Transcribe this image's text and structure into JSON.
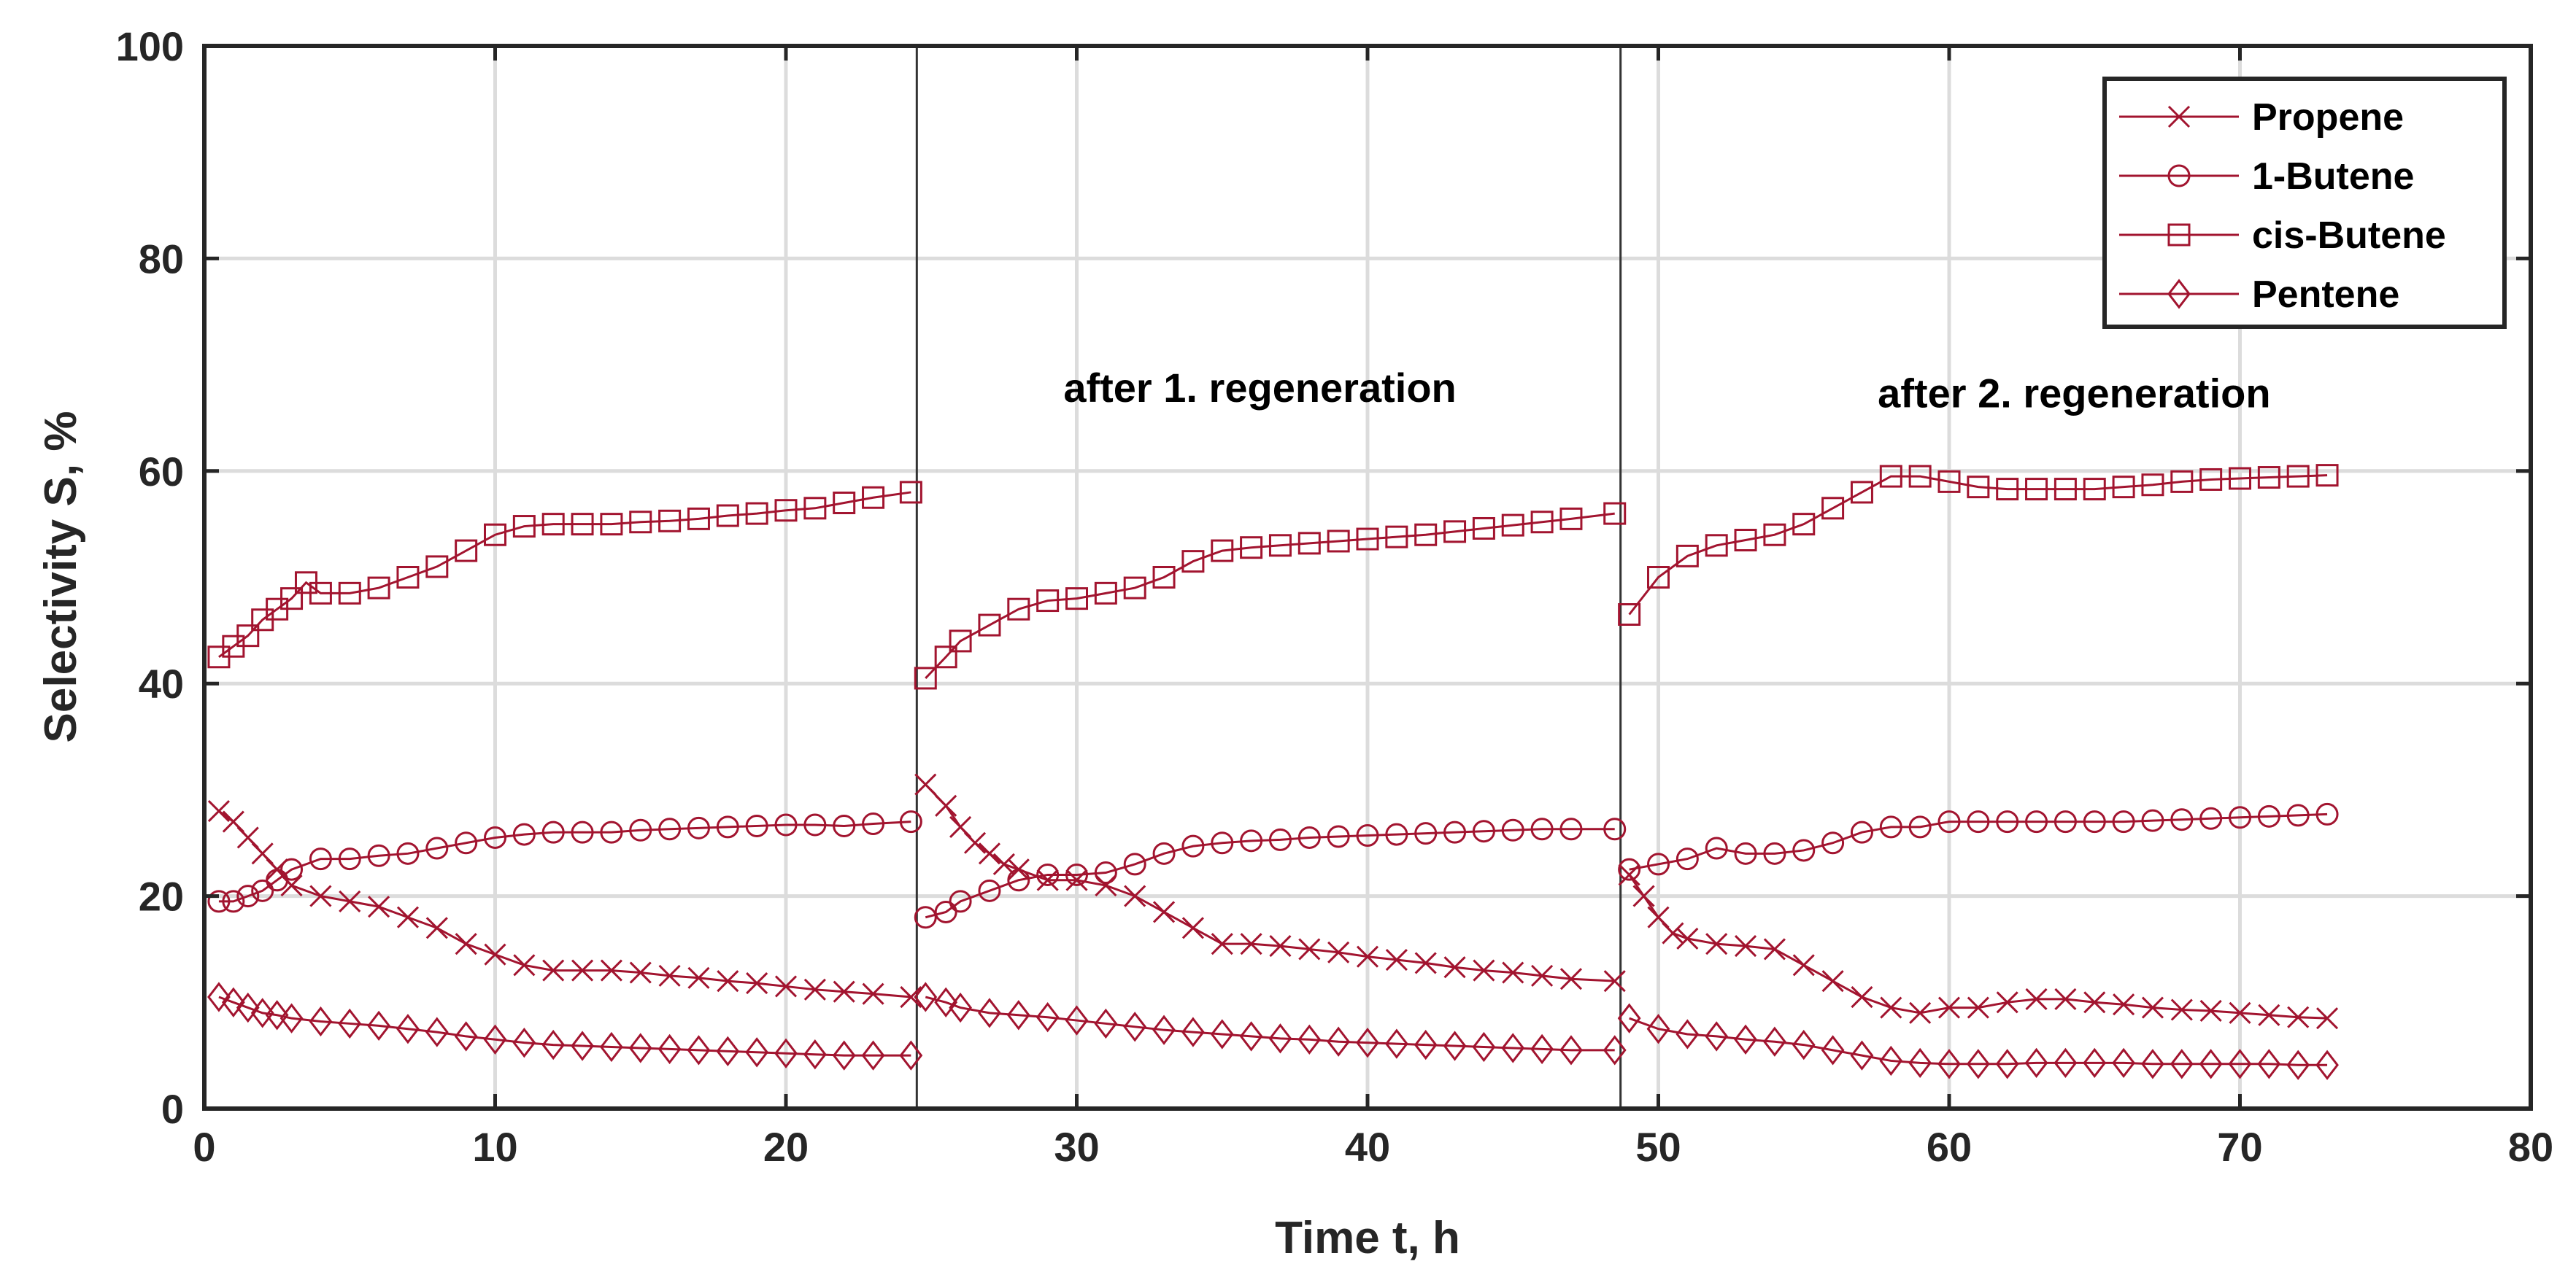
{
  "chart_data": {
    "type": "line",
    "title": "",
    "xlabel": "Time t, h",
    "ylabel": "Selectivity S, %",
    "xlim": [
      0,
      80
    ],
    "ylim": [
      0,
      100
    ],
    "xticks": [
      0,
      10,
      20,
      30,
      40,
      50,
      60,
      70,
      80
    ],
    "yticks": [
      0,
      20,
      40,
      60,
      80,
      100
    ],
    "grid": true,
    "legend_position": "top-right",
    "series_color": "#a2142f",
    "vlines": [
      24.5,
      48.7
    ],
    "annotations": [
      {
        "text": "after 1. regeneration",
        "x": 36.3,
        "y": 66.5
      },
      {
        "text": "after 2. regeneration",
        "x": 64.3,
        "y": 66
      }
    ],
    "series": [
      {
        "name": "Propene",
        "marker": "x",
        "points": [
          [
            0.5,
            28
          ],
          [
            1,
            27
          ],
          [
            1.5,
            25.5
          ],
          [
            2,
            24
          ],
          [
            2.5,
            22.5
          ],
          [
            3,
            21
          ],
          [
            4,
            20
          ],
          [
            5,
            19.5
          ],
          [
            6,
            19
          ],
          [
            7,
            18
          ],
          [
            8,
            17
          ],
          [
            9,
            15.5
          ],
          [
            10,
            14.5
          ],
          [
            11,
            13.5
          ],
          [
            12,
            13
          ],
          [
            13,
            13
          ],
          [
            14,
            13
          ],
          [
            15,
            12.8
          ],
          [
            16,
            12.5
          ],
          [
            17,
            12.3
          ],
          [
            18,
            12
          ],
          [
            19,
            11.8
          ],
          [
            20,
            11.5
          ],
          [
            21,
            11.2
          ],
          [
            22,
            11
          ],
          [
            23,
            10.8
          ],
          [
            24.3,
            10.5
          ],
          [
            24.8,
            30.5
          ],
          [
            25.5,
            28.5
          ],
          [
            26,
            26.5
          ],
          [
            26.5,
            25
          ],
          [
            27,
            24
          ],
          [
            27.5,
            23
          ],
          [
            28,
            22.5
          ],
          [
            29,
            21.5
          ],
          [
            30,
            21.5
          ],
          [
            31,
            21
          ],
          [
            32,
            20
          ],
          [
            33,
            18.5
          ],
          [
            34,
            17
          ],
          [
            35,
            15.5
          ],
          [
            36,
            15.5
          ],
          [
            37,
            15.3
          ],
          [
            38,
            15
          ],
          [
            39,
            14.7
          ],
          [
            40,
            14.3
          ],
          [
            41,
            14
          ],
          [
            42,
            13.7
          ],
          [
            43,
            13.3
          ],
          [
            44,
            13
          ],
          [
            45,
            12.8
          ],
          [
            46,
            12.5
          ],
          [
            47,
            12.2
          ],
          [
            48.5,
            12
          ],
          [
            49,
            22
          ],
          [
            49.5,
            20
          ],
          [
            50,
            18
          ],
          [
            50.5,
            16.5
          ],
          [
            51,
            16
          ],
          [
            52,
            15.5
          ],
          [
            53,
            15.3
          ],
          [
            54,
            15
          ],
          [
            55,
            13.5
          ],
          [
            56,
            12
          ],
          [
            57,
            10.5
          ],
          [
            58,
            9.5
          ],
          [
            59,
            9
          ],
          [
            60,
            9.5
          ],
          [
            61,
            9.5
          ],
          [
            62,
            10
          ],
          [
            63,
            10.3
          ],
          [
            64,
            10.3
          ],
          [
            65,
            10
          ],
          [
            66,
            9.8
          ],
          [
            67,
            9.5
          ],
          [
            68,
            9.3
          ],
          [
            69,
            9.2
          ],
          [
            70,
            9
          ],
          [
            71,
            8.8
          ],
          [
            72,
            8.6
          ],
          [
            73,
            8.5
          ]
        ]
      },
      {
        "name": "1-Butene",
        "marker": "o",
        "points": [
          [
            0.5,
            19.5
          ],
          [
            1,
            19.5
          ],
          [
            1.5,
            20
          ],
          [
            2,
            20.5
          ],
          [
            2.5,
            21.5
          ],
          [
            3,
            22.5
          ],
          [
            4,
            23.5
          ],
          [
            5,
            23.5
          ],
          [
            6,
            23.8
          ],
          [
            7,
            24
          ],
          [
            8,
            24.5
          ],
          [
            9,
            25
          ],
          [
            10,
            25.5
          ],
          [
            11,
            25.8
          ],
          [
            12,
            26
          ],
          [
            13,
            26
          ],
          [
            14,
            26
          ],
          [
            15,
            26.2
          ],
          [
            16,
            26.3
          ],
          [
            17,
            26.4
          ],
          [
            18,
            26.5
          ],
          [
            19,
            26.6
          ],
          [
            20,
            26.7
          ],
          [
            21,
            26.7
          ],
          [
            22,
            26.6
          ],
          [
            23,
            26.8
          ],
          [
            24.3,
            27
          ],
          [
            24.8,
            18
          ],
          [
            25.5,
            18.5
          ],
          [
            26,
            19.5
          ],
          [
            27,
            20.5
          ],
          [
            28,
            21.5
          ],
          [
            29,
            22
          ],
          [
            30,
            22
          ],
          [
            31,
            22.2
          ],
          [
            32,
            23
          ],
          [
            33,
            24
          ],
          [
            34,
            24.7
          ],
          [
            35,
            25
          ],
          [
            36,
            25.2
          ],
          [
            37,
            25.3
          ],
          [
            38,
            25.5
          ],
          [
            39,
            25.6
          ],
          [
            40,
            25.7
          ],
          [
            41,
            25.8
          ],
          [
            42,
            25.9
          ],
          [
            43,
            26
          ],
          [
            44,
            26.1
          ],
          [
            45,
            26.2
          ],
          [
            46,
            26.3
          ],
          [
            47,
            26.3
          ],
          [
            48.5,
            26.3
          ],
          [
            49,
            22.5
          ],
          [
            50,
            23
          ],
          [
            51,
            23.5
          ],
          [
            52,
            24.5
          ],
          [
            53,
            24
          ],
          [
            54,
            24
          ],
          [
            55,
            24.3
          ],
          [
            56,
            25
          ],
          [
            57,
            26
          ],
          [
            58,
            26.5
          ],
          [
            59,
            26.5
          ],
          [
            60,
            27
          ],
          [
            61,
            27
          ],
          [
            62,
            27
          ],
          [
            63,
            27
          ],
          [
            64,
            27
          ],
          [
            65,
            27
          ],
          [
            66,
            27
          ],
          [
            67,
            27.1
          ],
          [
            68,
            27.2
          ],
          [
            69,
            27.3
          ],
          [
            70,
            27.4
          ],
          [
            71,
            27.5
          ],
          [
            72,
            27.6
          ],
          [
            73,
            27.7
          ]
        ]
      },
      {
        "name": "cis-Butene",
        "marker": "s",
        "points": [
          [
            0.5,
            42.5
          ],
          [
            1,
            43.5
          ],
          [
            1.5,
            44.5
          ],
          [
            2,
            46
          ],
          [
            2.5,
            47
          ],
          [
            3,
            48
          ],
          [
            3.5,
            49.5
          ],
          [
            4,
            48.5
          ],
          [
            5,
            48.5
          ],
          [
            6,
            49
          ],
          [
            7,
            50
          ],
          [
            8,
            51
          ],
          [
            9,
            52.5
          ],
          [
            10,
            54
          ],
          [
            11,
            54.8
          ],
          [
            12,
            55
          ],
          [
            13,
            55
          ],
          [
            14,
            55
          ],
          [
            15,
            55.2
          ],
          [
            16,
            55.3
          ],
          [
            17,
            55.5
          ],
          [
            18,
            55.8
          ],
          [
            19,
            56
          ],
          [
            20,
            56.3
          ],
          [
            21,
            56.5
          ],
          [
            22,
            57
          ],
          [
            23,
            57.5
          ],
          [
            24.3,
            58
          ],
          [
            24.8,
            40.5
          ],
          [
            25.5,
            42.5
          ],
          [
            26,
            44
          ],
          [
            27,
            45.5
          ],
          [
            28,
            47
          ],
          [
            29,
            47.8
          ],
          [
            30,
            48
          ],
          [
            31,
            48.5
          ],
          [
            32,
            49
          ],
          [
            33,
            50
          ],
          [
            34,
            51.5
          ],
          [
            35,
            52.5
          ],
          [
            36,
            52.8
          ],
          [
            37,
            53
          ],
          [
            38,
            53.2
          ],
          [
            39,
            53.4
          ],
          [
            40,
            53.6
          ],
          [
            41,
            53.8
          ],
          [
            42,
            54
          ],
          [
            43,
            54.3
          ],
          [
            44,
            54.6
          ],
          [
            45,
            54.9
          ],
          [
            46,
            55.2
          ],
          [
            47,
            55.5
          ],
          [
            48.5,
            56
          ],
          [
            49,
            46.5
          ],
          [
            50,
            50
          ],
          [
            51,
            52
          ],
          [
            52,
            53
          ],
          [
            53,
            53.5
          ],
          [
            54,
            54
          ],
          [
            55,
            55
          ],
          [
            56,
            56.5
          ],
          [
            57,
            58
          ],
          [
            58,
            59.5
          ],
          [
            59,
            59.5
          ],
          [
            60,
            59
          ],
          [
            61,
            58.5
          ],
          [
            62,
            58.3
          ],
          [
            63,
            58.3
          ],
          [
            64,
            58.3
          ],
          [
            65,
            58.3
          ],
          [
            66,
            58.5
          ],
          [
            67,
            58.7
          ],
          [
            68,
            59
          ],
          [
            69,
            59.2
          ],
          [
            70,
            59.3
          ],
          [
            71,
            59.4
          ],
          [
            72,
            59.5
          ],
          [
            73,
            59.6
          ]
        ]
      },
      {
        "name": "Pentene",
        "marker": "d",
        "points": [
          [
            0.5,
            10.5
          ],
          [
            1,
            10
          ],
          [
            1.5,
            9.5
          ],
          [
            2,
            9
          ],
          [
            2.5,
            8.8
          ],
          [
            3,
            8.5
          ],
          [
            4,
            8.2
          ],
          [
            5,
            8
          ],
          [
            6,
            7.8
          ],
          [
            7,
            7.5
          ],
          [
            8,
            7.2
          ],
          [
            9,
            6.8
          ],
          [
            10,
            6.5
          ],
          [
            11,
            6.2
          ],
          [
            12,
            6
          ],
          [
            13,
            5.9
          ],
          [
            14,
            5.8
          ],
          [
            15,
            5.7
          ],
          [
            16,
            5.6
          ],
          [
            17,
            5.5
          ],
          [
            18,
            5.4
          ],
          [
            19,
            5.3
          ],
          [
            20,
            5.2
          ],
          [
            21,
            5.1
          ],
          [
            22,
            5
          ],
          [
            23,
            5
          ],
          [
            24.3,
            5
          ],
          [
            24.8,
            10.5
          ],
          [
            25.5,
            10
          ],
          [
            26,
            9.5
          ],
          [
            27,
            9
          ],
          [
            28,
            8.8
          ],
          [
            29,
            8.6
          ],
          [
            30,
            8.3
          ],
          [
            31,
            8
          ],
          [
            32,
            7.7
          ],
          [
            33,
            7.4
          ],
          [
            34,
            7.2
          ],
          [
            35,
            7
          ],
          [
            36,
            6.8
          ],
          [
            37,
            6.6
          ],
          [
            38,
            6.5
          ],
          [
            39,
            6.3
          ],
          [
            40,
            6.2
          ],
          [
            41,
            6.1
          ],
          [
            42,
            6
          ],
          [
            43,
            5.9
          ],
          [
            44,
            5.8
          ],
          [
            45,
            5.7
          ],
          [
            46,
            5.6
          ],
          [
            47,
            5.5
          ],
          [
            48.5,
            5.5
          ],
          [
            49,
            8.5
          ],
          [
            50,
            7.5
          ],
          [
            51,
            7
          ],
          [
            52,
            6.8
          ],
          [
            53,
            6.5
          ],
          [
            54,
            6.3
          ],
          [
            55,
            6
          ],
          [
            56,
            5.5
          ],
          [
            57,
            5
          ],
          [
            58,
            4.5
          ],
          [
            59,
            4.3
          ],
          [
            60,
            4.2
          ],
          [
            61,
            4.2
          ],
          [
            62,
            4.2
          ],
          [
            63,
            4.3
          ],
          [
            64,
            4.3
          ],
          [
            65,
            4.3
          ],
          [
            66,
            4.3
          ],
          [
            67,
            4.2
          ],
          [
            68,
            4.2
          ],
          [
            69,
            4.2
          ],
          [
            70,
            4.2
          ],
          [
            71,
            4.2
          ],
          [
            72,
            4.1
          ],
          [
            73,
            4.1
          ]
        ]
      }
    ]
  }
}
